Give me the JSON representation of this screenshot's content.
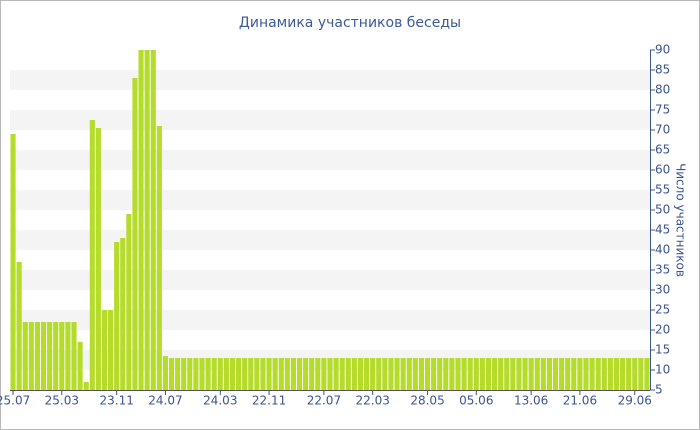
{
  "chart_data": {
    "type": "bar",
    "title": "Динамика участников беседы",
    "y_label": "Число участников",
    "color": "#b5dc2a",
    "categories": [
      "25.07",
      null,
      null,
      null,
      null,
      null,
      null,
      null,
      "25.03",
      null,
      null,
      null,
      null,
      null,
      null,
      null,
      null,
      "23.11",
      null,
      null,
      null,
      null,
      null,
      null,
      null,
      "24.07",
      null,
      null,
      null,
      null,
      null,
      null,
      null,
      null,
      "24.03",
      null,
      null,
      null,
      null,
      null,
      null,
      null,
      "22.11",
      null,
      null,
      null,
      null,
      null,
      null,
      null,
      null,
      "22.07",
      null,
      null,
      null,
      null,
      null,
      null,
      null,
      "22.03",
      null,
      null,
      null,
      null,
      null,
      null,
      null,
      null,
      "28.05",
      null,
      null,
      null,
      null,
      null,
      null,
      null,
      "05.06",
      null,
      null,
      null,
      null,
      null,
      null,
      null,
      null,
      "13.06",
      null,
      null,
      null,
      null,
      null,
      null,
      null,
      "21.06",
      null,
      null,
      null,
      null,
      null,
      null,
      null,
      null,
      "29.06",
      null,
      null
    ],
    "values": [
      69,
      37,
      22,
      22,
      22,
      22,
      22,
      22,
      22,
      22,
      22,
      17,
      7,
      72.5,
      70.5,
      25,
      25,
      42,
      43,
      49,
      83,
      90,
      90,
      90,
      71,
      13.5,
      13,
      13,
      13,
      13,
      13,
      13,
      13,
      13,
      13,
      13,
      13,
      13,
      13,
      13,
      13,
      13,
      13,
      13,
      13,
      13,
      13,
      13,
      13,
      13,
      13,
      13,
      13,
      13,
      13,
      13,
      13,
      13,
      13,
      13,
      13,
      13,
      13,
      13,
      13,
      13,
      13,
      13,
      13,
      13,
      13,
      13,
      13,
      13,
      13,
      13,
      13,
      13,
      13,
      13,
      13,
      13,
      13,
      13,
      13,
      13,
      13,
      13,
      13,
      13,
      13,
      13,
      13,
      13,
      13,
      13,
      13,
      13,
      13,
      13,
      13,
      13,
      13,
      13,
      13
    ],
    "ylim": [
      5,
      90
    ],
    "yticks": [
      5,
      10,
      15,
      20,
      25,
      30,
      35,
      40,
      45,
      50,
      55,
      60,
      65,
      70,
      75,
      80,
      85,
      90
    ],
    "grid": true
  }
}
